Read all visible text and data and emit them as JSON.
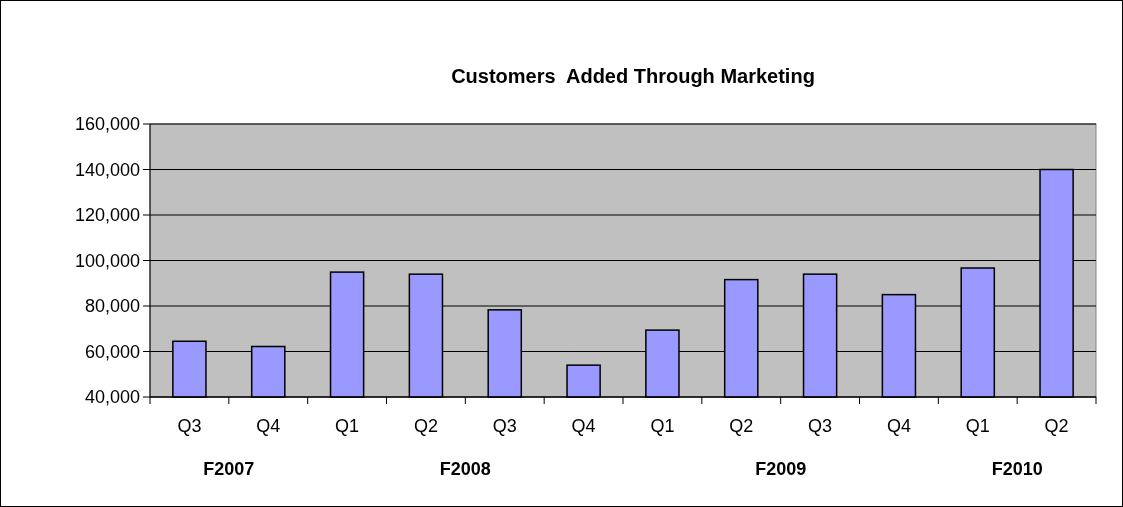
{
  "chart_data": {
    "type": "bar",
    "title": "Customers  Added Through Marketing",
    "categories": [
      "Q3",
      "Q4",
      "Q1",
      "Q2",
      "Q3",
      "Q4",
      "Q1",
      "Q2",
      "Q3",
      "Q4",
      "Q1",
      "Q2"
    ],
    "values": [
      64500,
      62200,
      94900,
      94000,
      78300,
      54000,
      69400,
      91600,
      94000,
      85000,
      96700,
      140000
    ],
    "color": "#9999ff",
    "ylim": [
      40000,
      160000
    ],
    "yticks": [
      {
        "value": 40000,
        "label": "40,000"
      },
      {
        "value": 60000,
        "label": "60,000"
      },
      {
        "value": 80000,
        "label": "80,000"
      },
      {
        "value": 100000,
        "label": "100,000"
      },
      {
        "value": 120000,
        "label": "120,000"
      },
      {
        "value": 140000,
        "label": "140,000"
      },
      {
        "value": 160000,
        "label": "160,000"
      }
    ],
    "grid": "y",
    "annotations": [
      "F2007",
      "F2008",
      "F2009",
      "F2010"
    ]
  }
}
